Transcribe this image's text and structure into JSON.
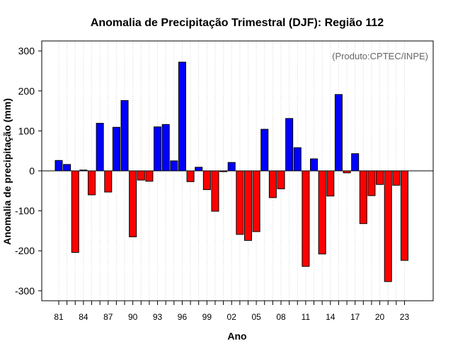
{
  "chart_data": {
    "type": "bar",
    "title": "Anomalia de Precipitação Trimestral (DJF): Região 112",
    "xlabel": "Ano",
    "ylabel": "Anomalia de precipitação (mm)",
    "credit": "(Produto:CPTEC/INPE)",
    "ylim": [
      -325,
      325
    ],
    "yticks": [
      -300,
      -200,
      -100,
      0,
      100,
      200,
      300
    ],
    "ytick_labels": [
      "-300",
      "-200",
      "-100",
      "0",
      "100",
      "200",
      "300"
    ],
    "xtick_labels": [
      "81",
      "84",
      "87",
      "90",
      "93",
      "96",
      "99",
      "02",
      "05",
      "08",
      "11",
      "14",
      "17",
      "20",
      "23"
    ],
    "grid": true,
    "positive_color": "#0000ff",
    "negative_color": "#ff0000",
    "categories": [
      "1981",
      "1982",
      "1983",
      "1984",
      "1985",
      "1986",
      "1987",
      "1988",
      "1989",
      "1990",
      "1991",
      "1992",
      "1993",
      "1994",
      "1995",
      "1996",
      "1997",
      "1998",
      "1999",
      "2000",
      "2001",
      "2002",
      "2003",
      "2004",
      "2005",
      "2006",
      "2007",
      "2008",
      "2009",
      "2010",
      "2011",
      "2012",
      "2013",
      "2014",
      "2015",
      "2016",
      "2017",
      "2018",
      "2019",
      "2020",
      "2021",
      "2022",
      "2023"
    ],
    "values": [
      26,
      16,
      -204,
      2,
      -60,
      119,
      -53,
      109,
      176,
      -165,
      -23,
      -26,
      110,
      116,
      25,
      272,
      -27,
      9,
      -47,
      -101,
      -2,
      21,
      -159,
      -174,
      -152,
      104,
      -67,
      -45,
      131,
      58,
      -239,
      30,
      -208,
      -63,
      191,
      -5,
      43,
      -132,
      -62,
      -34,
      -277,
      -36,
      -224
    ]
  }
}
